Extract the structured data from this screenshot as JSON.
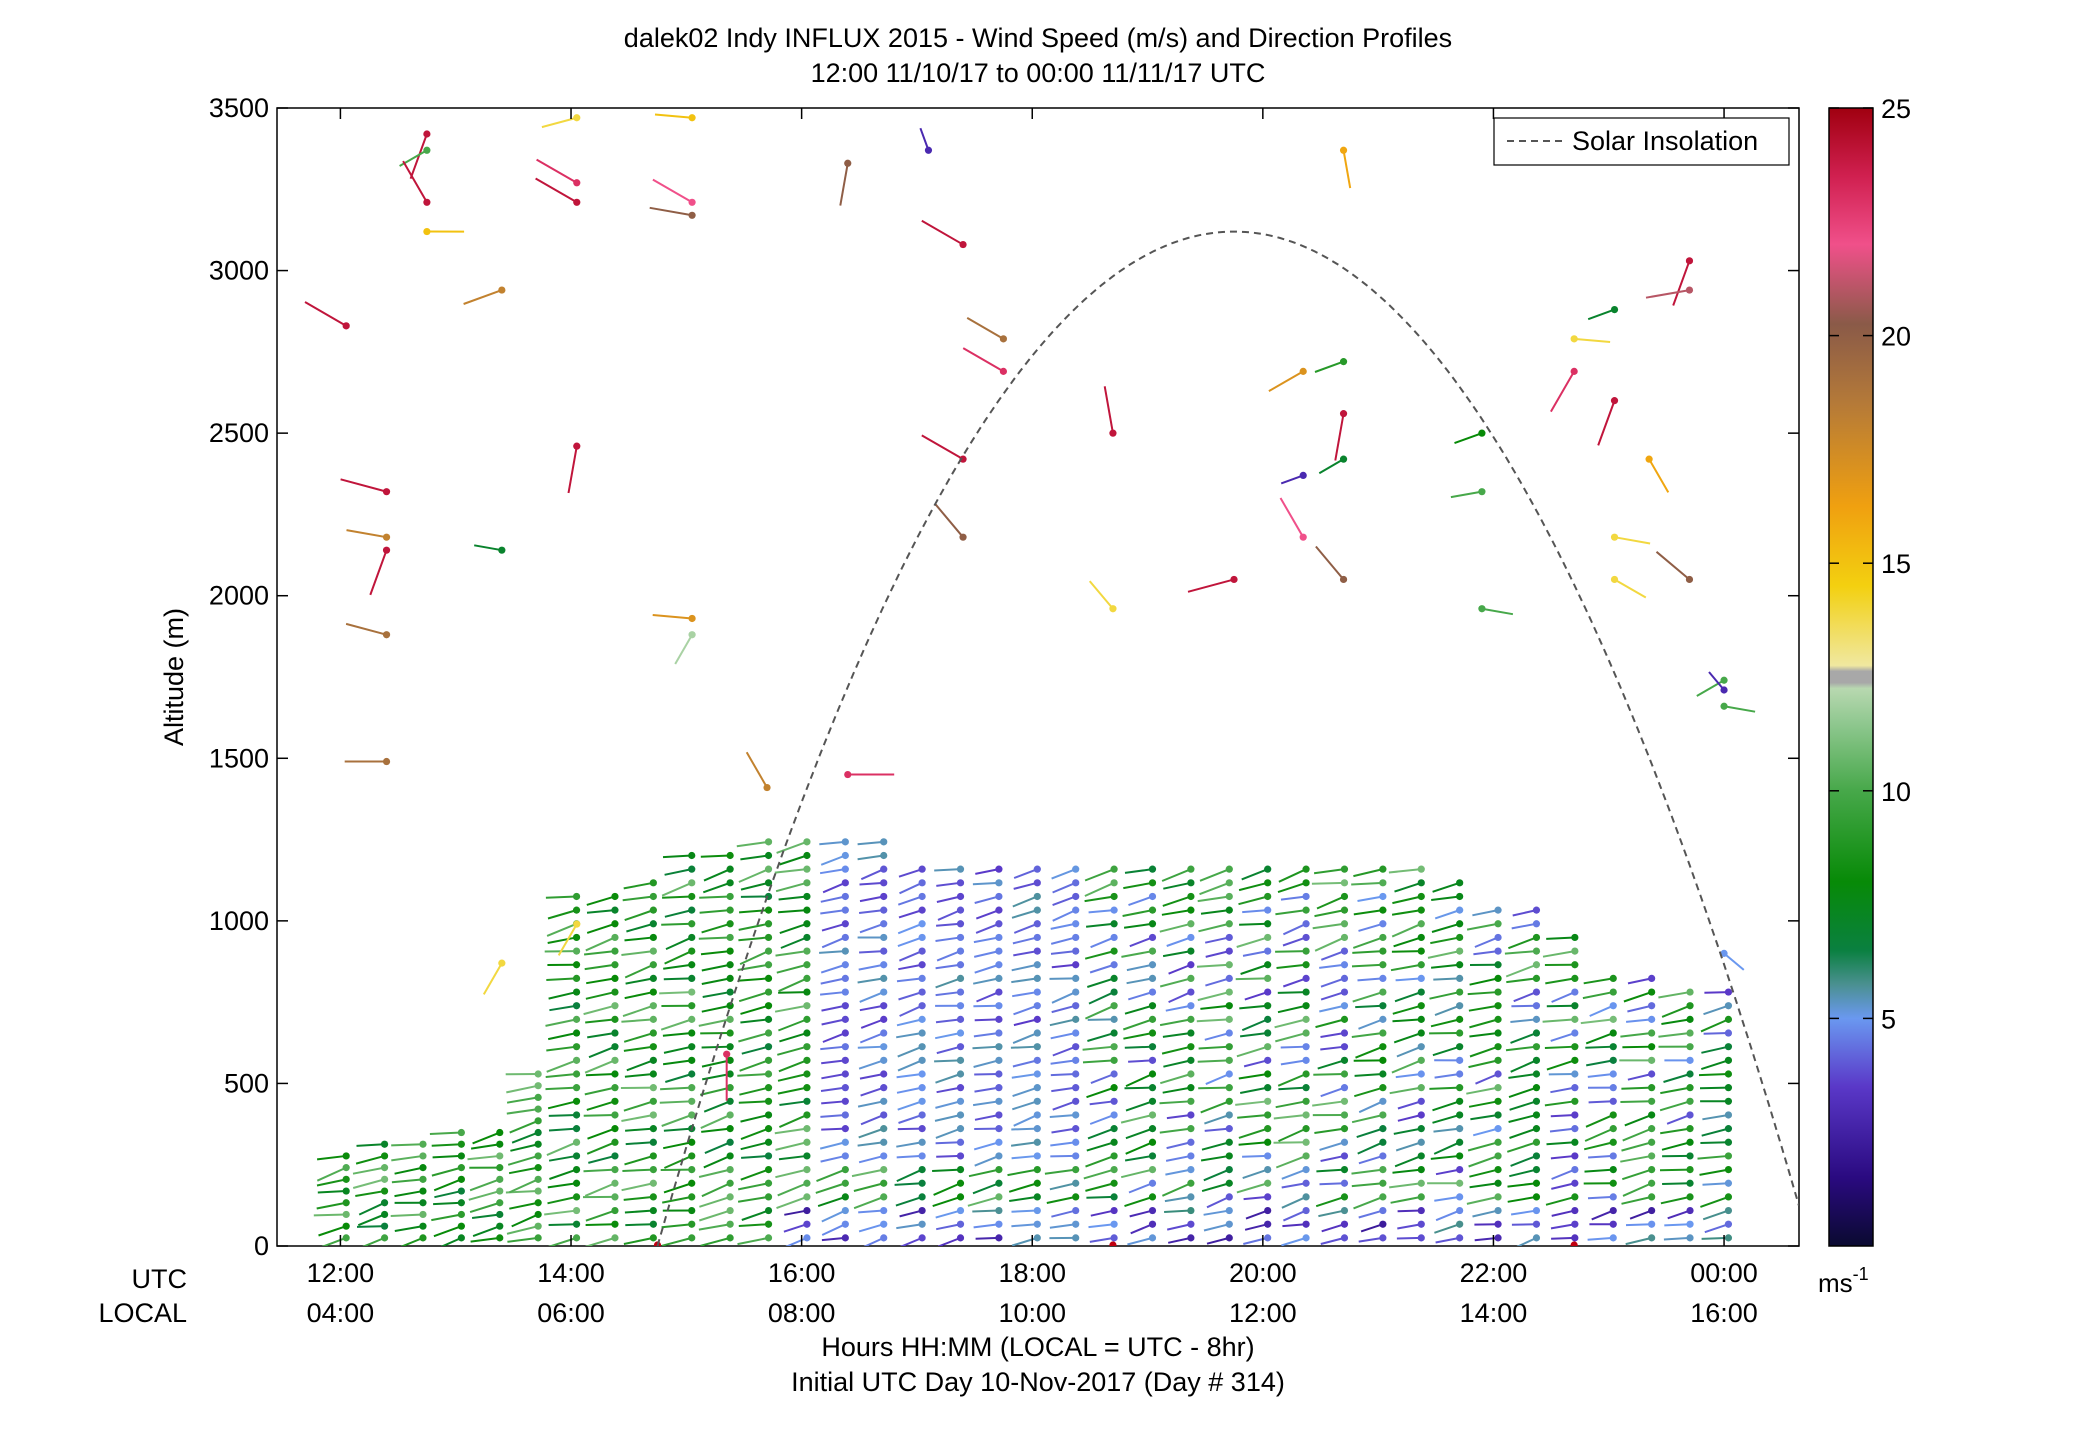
{
  "title": "dalek02 Indy INFLUX 2015 - Wind Speed (m/s) and Direction Profiles",
  "subtitle": "12:00 11/10/17 to 00:00 11/11/17  UTC",
  "ylabel": "Altitude (m)",
  "xlabel_line1": "Hours HH:MM  (LOCAL = UTC - 8hr)",
  "xlabel_line2": "Initial UTC Day 10-Nov-2017 (Day # 314)",
  "row_label_utc": "UTC",
  "row_label_local": "LOCAL",
  "legend_label": "Solar Insolation",
  "colorbar_unit_base": "ms",
  "colorbar_unit_exp": "-1",
  "chart_data": {
    "type": "scatter",
    "xlim_hours": [
      11.45,
      24.65
    ],
    "ylim": [
      0,
      3500
    ],
    "grid": false,
    "legend_position": "top-right",
    "x_ticks": [
      {
        "h": 12,
        "utc": "12:00",
        "local": "04:00"
      },
      {
        "h": 14,
        "utc": "14:00",
        "local": "06:00"
      },
      {
        "h": 16,
        "utc": "16:00",
        "local": "08:00"
      },
      {
        "h": 18,
        "utc": "18:00",
        "local": "10:00"
      },
      {
        "h": 20,
        "utc": "20:00",
        "local": "12:00"
      },
      {
        "h": 22,
        "utc": "22:00",
        "local": "14:00"
      },
      {
        "h": 24,
        "utc": "00:00",
        "local": "16:00"
      }
    ],
    "y_ticks": [
      "0",
      "500",
      "1000",
      "1500",
      "2000",
      "2500",
      "3000",
      "3500"
    ],
    "colorbar": {
      "min": 0,
      "max": 25,
      "ticks": [
        "5",
        "10",
        "15",
        "20",
        "25"
      ]
    },
    "solar_insolation": {
      "shape": "parabola",
      "start_hour": 14.75,
      "peak_hour": 19.75,
      "peak_altitude": 3120,
      "end_hour": 24.65,
      "end_altitude": 250
    },
    "high_altitude_barbs": [
      {
        "t": 12.05,
        "alt": 2830,
        "spd": 24,
        "dir": 300
      },
      {
        "t": 12.4,
        "alt": 2320,
        "spd": 24,
        "dir": 285
      },
      {
        "t": 12.4,
        "alt": 2180,
        "spd": 18,
        "dir": 280
      },
      {
        "t": 12.4,
        "alt": 2140,
        "spd": 24,
        "dir": 200
      },
      {
        "t": 12.4,
        "alt": 1880,
        "spd": 19,
        "dir": 285
      },
      {
        "t": 12.4,
        "alt": 1490,
        "spd": 19,
        "dir": 270
      },
      {
        "t": 12.75,
        "alt": 3420,
        "spd": 24,
        "dir": 200
      },
      {
        "t": 12.75,
        "alt": 3370,
        "spd": 10,
        "dir": 240
      },
      {
        "t": 12.75,
        "alt": 3210,
        "spd": 24,
        "dir": 330
      },
      {
        "t": 12.75,
        "alt": 3120,
        "spd": 15,
        "dir": 90
      },
      {
        "t": 13.4,
        "alt": 2940,
        "spd": 18,
        "dir": 250
      },
      {
        "t": 13.4,
        "alt": 2140,
        "spd": 7,
        "dir": 280
      },
      {
        "t": 13.4,
        "alt": 870,
        "spd": 14,
        "dir": 210
      },
      {
        "t": 14.05,
        "alt": 3470,
        "spd": 14,
        "dir": 255
      },
      {
        "t": 14.05,
        "alt": 3270,
        "spd": 23,
        "dir": 300
      },
      {
        "t": 14.05,
        "alt": 3210,
        "spd": 24,
        "dir": 300
      },
      {
        "t": 14.05,
        "alt": 2460,
        "spd": 24,
        "dir": 190
      },
      {
        "t": 14.05,
        "alt": 990,
        "spd": 14,
        "dir": 210
      },
      {
        "t": 15.05,
        "alt": 3470,
        "spd": 15,
        "dir": 275
      },
      {
        "t": 15.05,
        "alt": 3210,
        "spd": 22,
        "dir": 300
      },
      {
        "t": 15.05,
        "alt": 3170,
        "spd": 20,
        "dir": 280
      },
      {
        "t": 15.05,
        "alt": 1930,
        "spd": 17,
        "dir": 275
      },
      {
        "t": 15.05,
        "alt": 1880,
        "spd": 12,
        "dir": 210
      },
      {
        "t": 15.35,
        "alt": 590,
        "spd": 23,
        "dir": 180
      },
      {
        "t": 15.7,
        "alt": 1410,
        "spd": 18,
        "dir": 330
      },
      {
        "t": 16.4,
        "alt": 3330,
        "spd": 20,
        "dir": 190
      },
      {
        "t": 16.4,
        "alt": 1450,
        "spd": 23,
        "dir": 90
      },
      {
        "t": 17.1,
        "alt": 3370,
        "spd": 3,
        "dir": 340
      },
      {
        "t": 17.4,
        "alt": 3080,
        "spd": 24,
        "dir": 300
      },
      {
        "t": 17.4,
        "alt": 2420,
        "spd": 24,
        "dir": 300
      },
      {
        "t": 17.4,
        "alt": 2180,
        "spd": 20,
        "dir": 320
      },
      {
        "t": 17.75,
        "alt": 2790,
        "spd": 19,
        "dir": 300
      },
      {
        "t": 17.75,
        "alt": 2690,
        "spd": 23,
        "dir": 300
      },
      {
        "t": 18.7,
        "alt": 2500,
        "spd": 24,
        "dir": 350
      },
      {
        "t": 18.7,
        "alt": 1960,
        "spd": 14,
        "dir": 320
      },
      {
        "t": 19.75,
        "alt": 2050,
        "spd": 24,
        "dir": 255
      },
      {
        "t": 20.35,
        "alt": 2690,
        "spd": 17,
        "dir": 240
      },
      {
        "t": 20.35,
        "alt": 2370,
        "spd": 3,
        "dir": 250
      },
      {
        "t": 20.35,
        "alt": 2180,
        "spd": 22,
        "dir": 330
      },
      {
        "t": 20.7,
        "alt": 3370,
        "spd": 16,
        "dir": 170
      },
      {
        "t": 20.7,
        "alt": 2720,
        "spd": 9,
        "dir": 250
      },
      {
        "t": 20.7,
        "alt": 2560,
        "spd": 24,
        "dir": 190
      },
      {
        "t": 20.7,
        "alt": 2420,
        "spd": 7,
        "dir": 240
      },
      {
        "t": 20.7,
        "alt": 2050,
        "spd": 20,
        "dir": 320
      },
      {
        "t": 21.9,
        "alt": 2500,
        "spd": 8,
        "dir": 250
      },
      {
        "t": 21.9,
        "alt": 2320,
        "spd": 10,
        "dir": 260
      },
      {
        "t": 21.9,
        "alt": 1960,
        "spd": 10,
        "dir": 100
      },
      {
        "t": 22.7,
        "alt": 2790,
        "spd": 14,
        "dir": 95
      },
      {
        "t": 22.7,
        "alt": 2690,
        "spd": 23,
        "dir": 210
      },
      {
        "t": 23.05,
        "alt": 2880,
        "spd": 7,
        "dir": 250
      },
      {
        "t": 23.05,
        "alt": 2600,
        "spd": 24,
        "dir": 200
      },
      {
        "t": 23.05,
        "alt": 2180,
        "spd": 14,
        "dir": 100
      },
      {
        "t": 23.05,
        "alt": 2050,
        "spd": 14,
        "dir": 120
      },
      {
        "t": 23.35,
        "alt": 2420,
        "spd": 16,
        "dir": 150
      },
      {
        "t": 23.7,
        "alt": 3030,
        "spd": 24,
        "dir": 200
      },
      {
        "t": 23.7,
        "alt": 2940,
        "spd": 21,
        "dir": 260
      },
      {
        "t": 23.7,
        "alt": 2050,
        "spd": 20,
        "dir": 310
      },
      {
        "t": 24.0,
        "alt": 1740,
        "spd": 10,
        "dir": 240
      },
      {
        "t": 24.0,
        "alt": 1710,
        "spd": 3,
        "dir": 320
      },
      {
        "t": 24.0,
        "alt": 1660,
        "spd": 10,
        "dir": 100
      },
      {
        "t": 24.0,
        "alt": 900,
        "spd": 5,
        "dir": 130
      }
    ]
  }
}
